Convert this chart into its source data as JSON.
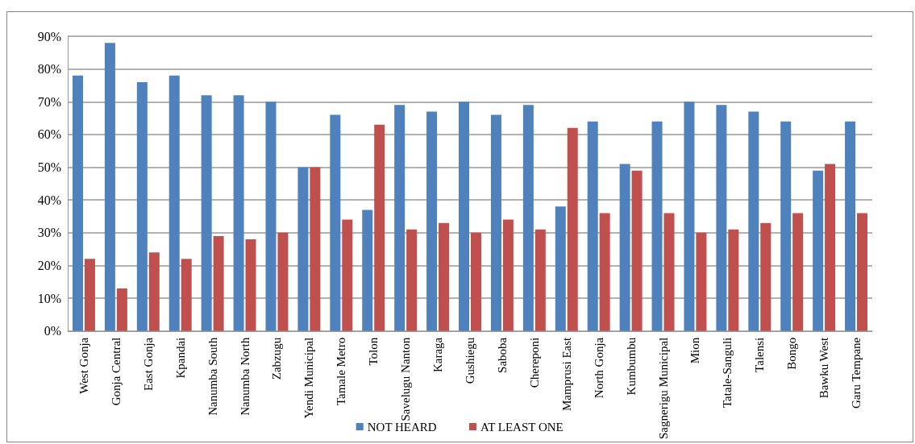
{
  "chart_data": {
    "type": "bar",
    "categories": [
      "West Gonja",
      "Gonja Central",
      "East Gonja",
      "Kpandai",
      "Nanumba South",
      "Nanumba North",
      "Zabzugu",
      "Yendi Municipal",
      "Tamale Metro",
      "Tolon",
      "Savelugu Nanton",
      "Karaga",
      "Gushiegu",
      "Saboba",
      "Chereponi",
      "Mamprusi East",
      "North Gonja",
      "Kumbumbu",
      "Sagnerigu Municipal",
      "Mion",
      "Tatale-Sanguli",
      "Talensi",
      "Bongo",
      "Bawku West",
      "Garu Tempane"
    ],
    "series": [
      {
        "name": "NOT HEARD",
        "color": "#4f81bd",
        "values": [
          78,
          88,
          76,
          78,
          72,
          72,
          70,
          50,
          66,
          37,
          69,
          67,
          70,
          66,
          69,
          38,
          64,
          51,
          64,
          70,
          69,
          67,
          64,
          49,
          64
        ]
      },
      {
        "name": "AT LEAST ONE",
        "color": "#c0504d",
        "values": [
          22,
          13,
          24,
          22,
          29,
          28,
          30,
          50,
          34,
          63,
          31,
          33,
          30,
          34,
          31,
          62,
          36,
          49,
          36,
          30,
          31,
          33,
          36,
          51,
          36
        ]
      }
    ],
    "ylim": [
      0,
      90
    ],
    "yticks": [
      {
        "value": 0,
        "label": "0%"
      },
      {
        "value": 10,
        "label": "10%"
      },
      {
        "value": 20,
        "label": "20%"
      },
      {
        "value": 30,
        "label": "30%"
      },
      {
        "value": 40,
        "label": "40%"
      },
      {
        "value": 50,
        "label": "50%"
      },
      {
        "value": 60,
        "label": "60%"
      },
      {
        "value": 70,
        "label": "70%"
      },
      {
        "value": 80,
        "label": "80%"
      },
      {
        "value": 90,
        "label": "90%"
      }
    ],
    "grid": "y",
    "legend": "bottom"
  }
}
